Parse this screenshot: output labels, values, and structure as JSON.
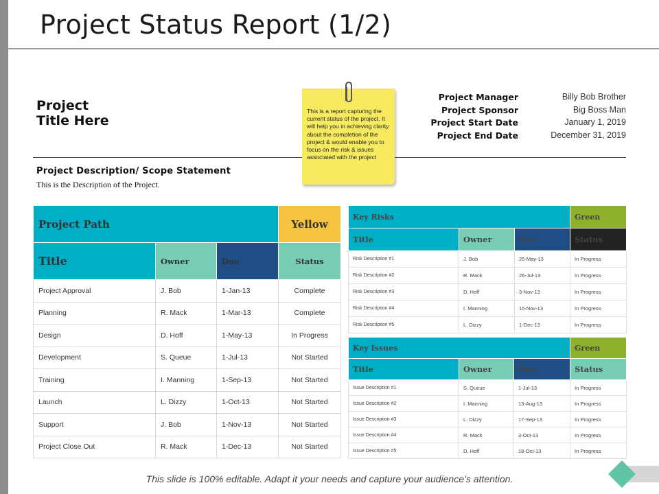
{
  "page": {
    "title": "Project Status Report (1/2)"
  },
  "project": {
    "title_line1": "Project",
    "title_line2": "Title Here",
    "description_heading": "Project Description/  Scope Statement",
    "description_text": "This is the Description of the Project."
  },
  "note": {
    "text": "This is a report capturing the current status of the project. It will help you in achieving clarity about the completion of the project & would enable you to focus on the risk & issues associated with the project"
  },
  "meta": [
    {
      "label": "Project Manager",
      "value": "Billy Bob Brother"
    },
    {
      "label": "Project Sponsor",
      "value": "Big Boss Man"
    },
    {
      "label": "Project Start Date",
      "value": "January  1, 2019"
    },
    {
      "label": "Project End Date",
      "value": "December  31, 2019"
    }
  ],
  "path_table": {
    "title": "Project Path",
    "status": "Yellow",
    "headers": [
      "Title",
      "Owner",
      "Due",
      "Status"
    ],
    "rows": [
      [
        "Project Approval",
        "J. Bob",
        "1-Jan-13",
        "Complete"
      ],
      [
        "Planning",
        "R. Mack",
        "1-Mar-13",
        "Complete"
      ],
      [
        "Design",
        "D. Hoff",
        "1-May-13",
        "In Progress"
      ],
      [
        "Development",
        "S. Queue",
        "1-Jul-13",
        "Not Started"
      ],
      [
        "Training",
        "I. Manning",
        "1-Sep-13",
        "Not Started"
      ],
      [
        "Launch",
        "L. Dizzy",
        "1-Oct-13",
        "Not Started"
      ],
      [
        "Support",
        "J. Bob",
        "1-Nov-13",
        "Not Started"
      ],
      [
        "Project Close Out",
        "R. Mack",
        "1-Dec-13",
        "Not Started"
      ]
    ]
  },
  "risk_table": {
    "title": "Key Risks",
    "status": "Green",
    "headers": [
      "Title",
      "Owner",
      "Due",
      "Status"
    ],
    "rows": [
      [
        "Risk Description #1",
        "J. Bob",
        "25-May-13",
        "In Progress"
      ],
      [
        "Risk Description #2",
        "R. Mack",
        "26-Jul-13",
        "In Progress"
      ],
      [
        "Risk Description #3",
        "D. Hoff",
        "3-Nov-13",
        "In Progress"
      ],
      [
        "Risk Description #4",
        "I. Manning",
        "15-Nov-13",
        "In Progress"
      ],
      [
        "Risk Description #5",
        "L. Dizzy",
        "1-Dec-13",
        "In Progress"
      ]
    ]
  },
  "issue_table": {
    "title": "Key Issues",
    "status": "Green",
    "headers": [
      "Title",
      "Owner",
      "Due",
      "Status"
    ],
    "rows": [
      [
        "Issue Description #1",
        "S. Queue",
        "1-Jul-13",
        "In Progress"
      ],
      [
        "Issue Description #2",
        "I. Manning",
        "13-Aug-13",
        "In Progress"
      ],
      [
        "Issue Description #3",
        "L. Dizzy",
        "17-Sep-13",
        "In Progress"
      ],
      [
        "Issue Description #4",
        "R. Mack",
        "3-Oct-13",
        "In Progress"
      ],
      [
        "Issue Description #5",
        "D. Hoff",
        "18-Oct-13",
        "In Progress"
      ]
    ]
  },
  "footer": {
    "text": "This slide is 100% editable. Adapt it your needs and capture your audience’s attention."
  },
  "icons": {
    "clip": "paperclip-icon",
    "nav": "diamond-arrow-icon"
  },
  "colors": {
    "teal": "#00aec6",
    "yellow": "#f5c340",
    "mint": "#76cdb3",
    "navy": "#1f4e85",
    "green": "#8db12c",
    "black": "#222222",
    "note": "#f7ea5f"
  }
}
